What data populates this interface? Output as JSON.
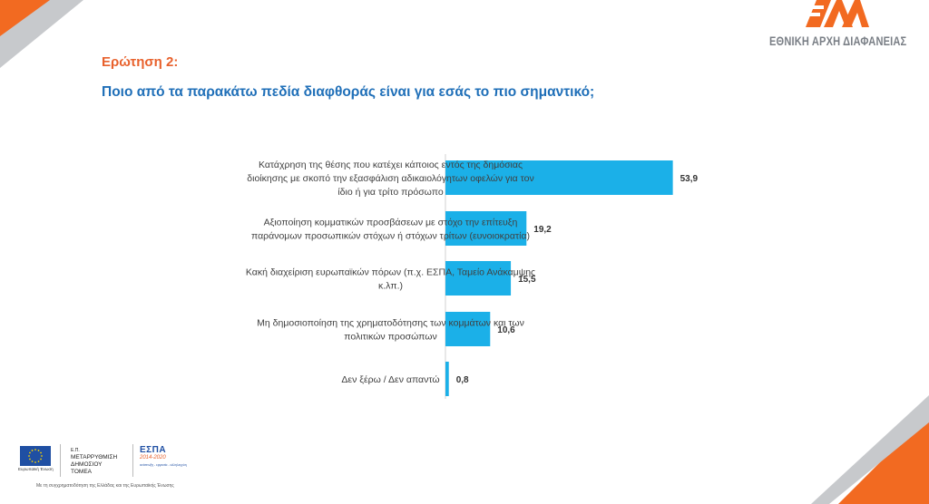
{
  "header": {
    "question_label": "Ερώτηση 2:",
    "question_text": "Ποιο από τα παρακάτω πεδία διαφθοράς είναι για εσάς το πιο σημαντικό;"
  },
  "brand": {
    "name": "ΕΘΝΙΚΗ ΑΡΧΗ ΔΙΑΦΑΝΕΙΑΣ",
    "accent_orange": "#f26a21",
    "accent_gray": "#c7c9cc"
  },
  "chart_data": {
    "type": "bar",
    "orientation": "horizontal",
    "title": "Ποιο από τα παρακάτω πεδία διαφθοράς είναι για εσάς το πιο σημαντικό;",
    "categories": [
      [
        "Κατάχρηση της θέσης που κατέχει κάποιος εντός της δημόσιας",
        "διοίκησης με σκοπό την εξασφάλιση αδικαιολόγητων οφελών για τον",
        "ίδιο ή για τρίτο πρόσωπο"
      ],
      [
        "Αξιοποίηση κομματικών προσβάσεων με στόχο την επίτευξη",
        "παράνομων προσωπικών στόχων ή στόχων τρίτων (ευνοιοκρατία)"
      ],
      [
        "Κακή διαχείριση ευρωπαϊκών πόρων (π.χ. ΕΣΠΑ, Ταμείο Ανάκαμψης",
        "κ.λπ.)"
      ],
      [
        "Μη δημοσιοποίηση της χρηματοδότησης των κομμάτων και των",
        "πολιτικών προσώπων"
      ],
      [
        "Δεν ξέρω / Δεν απαντώ"
      ]
    ],
    "values": [
      53.9,
      19.2,
      15.5,
      10.6,
      0.8
    ],
    "value_labels": [
      "53,9",
      "19,2",
      "15,5",
      "10,6",
      "0,8"
    ],
    "bar_color": "#1bb0e8",
    "xlim": [
      0,
      60
    ],
    "grid": false,
    "legend": "none"
  },
  "footer": {
    "eu_caption": "Ευρωπαϊκή Ένωση",
    "ministry_lines": [
      "Ε.Π.",
      "ΜΕΤΑΡΡΥΘΜΙΣΗ",
      "ΔΗΜΟΣΙΟΥ",
      "ΤΟΜΕΑ"
    ],
    "espa_title": "ΕΣΠΑ",
    "espa_years": "2014-2020",
    "espa_subtitle": "ανάπτυξη - εργασία - αλληλεγγύη",
    "note": "Με τη συγχρηματοδότηση της Ελλάδας και της Ευρωπαϊκής Ένωσης"
  }
}
